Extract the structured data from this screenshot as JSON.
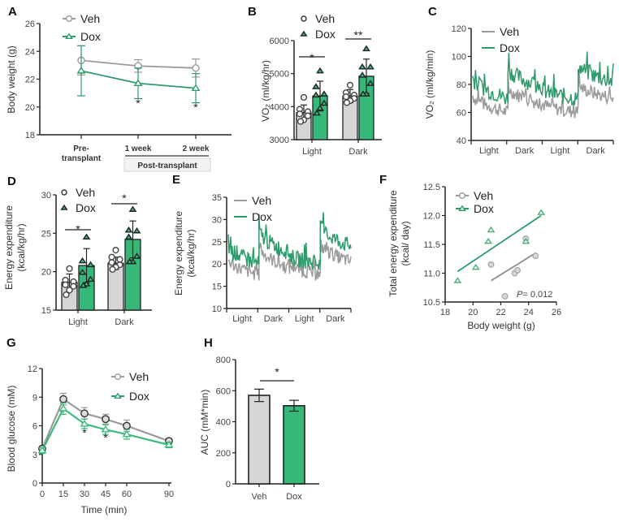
{
  "colors": {
    "veh_line": "#9b9b9b",
    "veh_fill": "#d6d6d6",
    "dox_line": "#2e9b6b",
    "dox_fill": "#35b878",
    "axis": "#222222",
    "box_bg": "#f2f2f2"
  },
  "chart_data": [
    {
      "panel": "A",
      "type": "line",
      "ylabel": "Body weight (g)",
      "xlabel": "",
      "categories": [
        "Pre-\ntransplant",
        "1 week",
        "2 week"
      ],
      "category_group_label": "Post-transplant",
      "ylim": [
        18,
        26
      ],
      "yticks": [
        18,
        20,
        22,
        24,
        26
      ],
      "legend": [
        "Veh",
        "Dox"
      ],
      "series": [
        {
          "name": "Veh",
          "values": [
            23.35,
            22.95,
            22.8
          ],
          "err": [
            1.05,
            0.45,
            0.65
          ],
          "marker": "circle"
        },
        {
          "name": "Dox",
          "values": [
            22.6,
            21.7,
            21.35
          ],
          "err": [
            1.8,
            1.1,
            1.05
          ],
          "marker": "triangle"
        }
      ],
      "annotations": [
        {
          "x": "1 week",
          "text": "*"
        },
        {
          "x": "2 week",
          "text": "*"
        }
      ]
    },
    {
      "panel": "B",
      "type": "bar",
      "ylabel": "VO2 (ml/kg/hr)",
      "categories": [
        "Light",
        "Dark"
      ],
      "ylim": [
        3000,
        6000
      ],
      "yticks": [
        3000,
        4000,
        5000,
        6000
      ],
      "legend": [
        "Veh",
        "Dox"
      ],
      "series": [
        {
          "name": "Veh",
          "values": [
            3820,
            4320
          ],
          "err": [
            230,
            200
          ],
          "points": [
            [
              4280,
              3920,
              3850,
              3780,
              3720,
              3600,
              3550
            ],
            [
              4650,
              4420,
              4350,
              4300,
              4250,
              4180,
              4120
            ]
          ]
        },
        {
          "name": "Dox",
          "values": [
            4320,
            4920
          ],
          "err": [
            450,
            520
          ],
          "points": [
            [
              5080,
              4600,
              4380,
              4350,
              4100,
              3950,
              3800
            ],
            [
              5750,
              5200,
              5200,
              4950,
              4700,
              4380,
              4380
            ]
          ]
        }
      ],
      "annotations": [
        {
          "x": "Light",
          "text": "*"
        },
        {
          "x": "Dark",
          "text": "**"
        }
      ]
    },
    {
      "panel": "C",
      "type": "line",
      "ylabel": "VO2 (ml/kg/min)",
      "categories": [
        "Light",
        "Dark",
        "Light",
        "Dark"
      ],
      "ylim": [
        40,
        120
      ],
      "yticks": [
        40,
        60,
        80,
        100,
        120
      ],
      "legend": [
        "Veh",
        "Dox"
      ],
      "series": [
        {
          "name": "Veh",
          "segment_means": [
            [
              72,
              60
            ],
            [
              78,
              66
            ],
            [
              66,
              60
            ],
            [
              80,
              70
            ]
          ],
          "noise": 5
        },
        {
          "name": "Dox",
          "segment_means": [
            [
              85,
              70
            ],
            [
              92,
              78
            ],
            [
              76,
              70
            ],
            [
              94,
              82
            ]
          ],
          "noise": 6
        }
      ]
    },
    {
      "panel": "D",
      "type": "bar",
      "ylabel": "Energy expenditure (kcal/kg/hr)",
      "categories": [
        "Light",
        "Dark"
      ],
      "ylim": [
        15,
        30
      ],
      "yticks": [
        15,
        20,
        25,
        30
      ],
      "legend": [
        "Veh",
        "Dox"
      ],
      "series": [
        {
          "name": "Veh",
          "values": [
            18.6,
            21.1
          ],
          "err": [
            1.1,
            0.8
          ],
          "points": [
            [
              20.4,
              18.9,
              18.7,
              18.3,
              18.1,
              17.6,
              17.0
            ],
            [
              22.8,
              21.9,
              21.6,
              21.2,
              20.9,
              20.6,
              20.3
            ]
          ]
        },
        {
          "name": "Dox",
          "values": [
            20.8,
            24.2
          ],
          "err": [
            2.2,
            2.4
          ],
          "points": [
            [
              24.5,
              21.4,
              20.9,
              19.9,
              19.0,
              18.4,
              18.2
            ],
            [
              28.1,
              25.4,
              25.3,
              24.5,
              22.0,
              21.3,
              21.3
            ]
          ]
        }
      ],
      "annotations": [
        {
          "x": "Light",
          "text": "*"
        },
        {
          "x": "Dark",
          "text": "*"
        }
      ]
    },
    {
      "panel": "E",
      "type": "line",
      "ylabel": "Energy expenditure (kcal/kg/hr)",
      "categories": [
        "Light",
        "Dark",
        "Light",
        "Dark"
      ],
      "ylim": [
        10,
        35
      ],
      "yticks": [
        10,
        15,
        20,
        25,
        30,
        35
      ],
      "legend": [
        "Veh",
        "Dox"
      ],
      "series": [
        {
          "name": "Veh",
          "segment_means": [
            [
              21,
              17.5
            ],
            [
              24,
              19
            ],
            [
              20,
              17.5
            ],
            [
              24.5,
              20.5
            ]
          ],
          "noise": 1.5
        },
        {
          "name": "Dox",
          "segment_means": [
            [
              24,
              20
            ],
            [
              27.5,
              22.5
            ],
            [
              22,
              20
            ],
            [
              28.5,
              24
            ]
          ],
          "noise": 1.8
        }
      ]
    },
    {
      "panel": "F",
      "type": "scatter",
      "ylabel": "Total energy expenditure (kcal/ day)",
      "xlabel": "Body weight (g)",
      "xlim": [
        18,
        26
      ],
      "ylim": [
        10.5,
        12.5
      ],
      "xticks": [
        18,
        20,
        22,
        24,
        26
      ],
      "yticks": [
        10.5,
        11.0,
        11.5,
        12.0,
        12.5
      ],
      "legend": [
        "Veh",
        "Dox"
      ],
      "series": [
        {
          "name": "Veh",
          "x": [
            21.3,
            22.3,
            23.0,
            23.2,
            23.8,
            24.5
          ],
          "y": [
            11.15,
            10.6,
            11.0,
            11.05,
            11.6,
            11.3
          ],
          "fit": [
            [
              21.3,
              10.87
            ],
            [
              24.5,
              11.35
            ]
          ]
        },
        {
          "name": "Dox",
          "x": [
            18.9,
            20.2,
            21.1,
            21.3,
            23.8,
            24.9
          ],
          "y": [
            10.87,
            11.1,
            11.55,
            11.75,
            11.55,
            12.05
          ],
          "fit": [
            [
              18.9,
              11.03
            ],
            [
              24.9,
              12.0
            ]
          ]
        }
      ],
      "annotation": "P= 0.012"
    },
    {
      "panel": "G",
      "type": "line",
      "ylabel": "Blood glucose (mM)",
      "xlabel": "Time (min)",
      "x": [
        0,
        15,
        30,
        45,
        60,
        90
      ],
      "xlim": [
        0,
        90
      ],
      "ylim": [
        0,
        12
      ],
      "xticks": [
        0,
        15,
        30,
        45,
        60,
        90
      ],
      "yticks": [
        0,
        3,
        6,
        9,
        12
      ],
      "legend": [
        "Veh",
        "Dox"
      ],
      "series": [
        {
          "name": "Veh",
          "values": [
            3.6,
            8.8,
            7.3,
            6.7,
            6.0,
            4.4
          ],
          "err": [
            0.3,
            0.6,
            0.6,
            0.5,
            0.6,
            0.3
          ],
          "marker": "circle"
        },
        {
          "name": "Dox",
          "values": [
            3.4,
            7.8,
            6.2,
            5.6,
            5.1,
            4.0
          ],
          "err": [
            0.3,
            0.6,
            0.5,
            0.5,
            0.5,
            0.3
          ],
          "marker": "triangle"
        }
      ],
      "annotations": [
        {
          "x": 30,
          "text": "*"
        },
        {
          "x": 45,
          "text": "*"
        }
      ]
    },
    {
      "panel": "H",
      "type": "bar",
      "ylabel": "AUC (mM*min)",
      "categories": [
        "Veh",
        "Dox"
      ],
      "ylim": [
        0,
        800
      ],
      "yticks": [
        0,
        200,
        400,
        600,
        800
      ],
      "values": [
        570,
        503
      ],
      "err": [
        40,
        35
      ],
      "annotation": "*"
    }
  ],
  "labels": {
    "A": "A",
    "B": "B",
    "C": "C",
    "D": "D",
    "E": "E",
    "F": "F",
    "G": "G",
    "H": "H",
    "veh": "Veh",
    "dox": "Dox",
    "light": "Light",
    "dark": "Dark",
    "pre1": "Pre-",
    "pre2": "transplant",
    "w1": "1 week",
    "w2": "2 week",
    "post": "Post-transplant",
    "p_value": "P= 0.012",
    "ylab_A": "Body weight (g)",
    "ylab_B": "VO₂ (ml/kg/hr)",
    "ylab_C": "VO₂ (ml/kg/min)",
    "ylab_D1": "Energy expenditure",
    "ylab_D2": "(kcal/kg/hr)",
    "ylab_F1": "Total energy expenditure",
    "ylab_F2": "(kcal/ day)",
    "xlab_F": "Body weight (g)",
    "ylab_G": "Blood glucose (mM)",
    "xlab_G": "Time (min)",
    "ylab_H": "AUC (mM*min)"
  }
}
